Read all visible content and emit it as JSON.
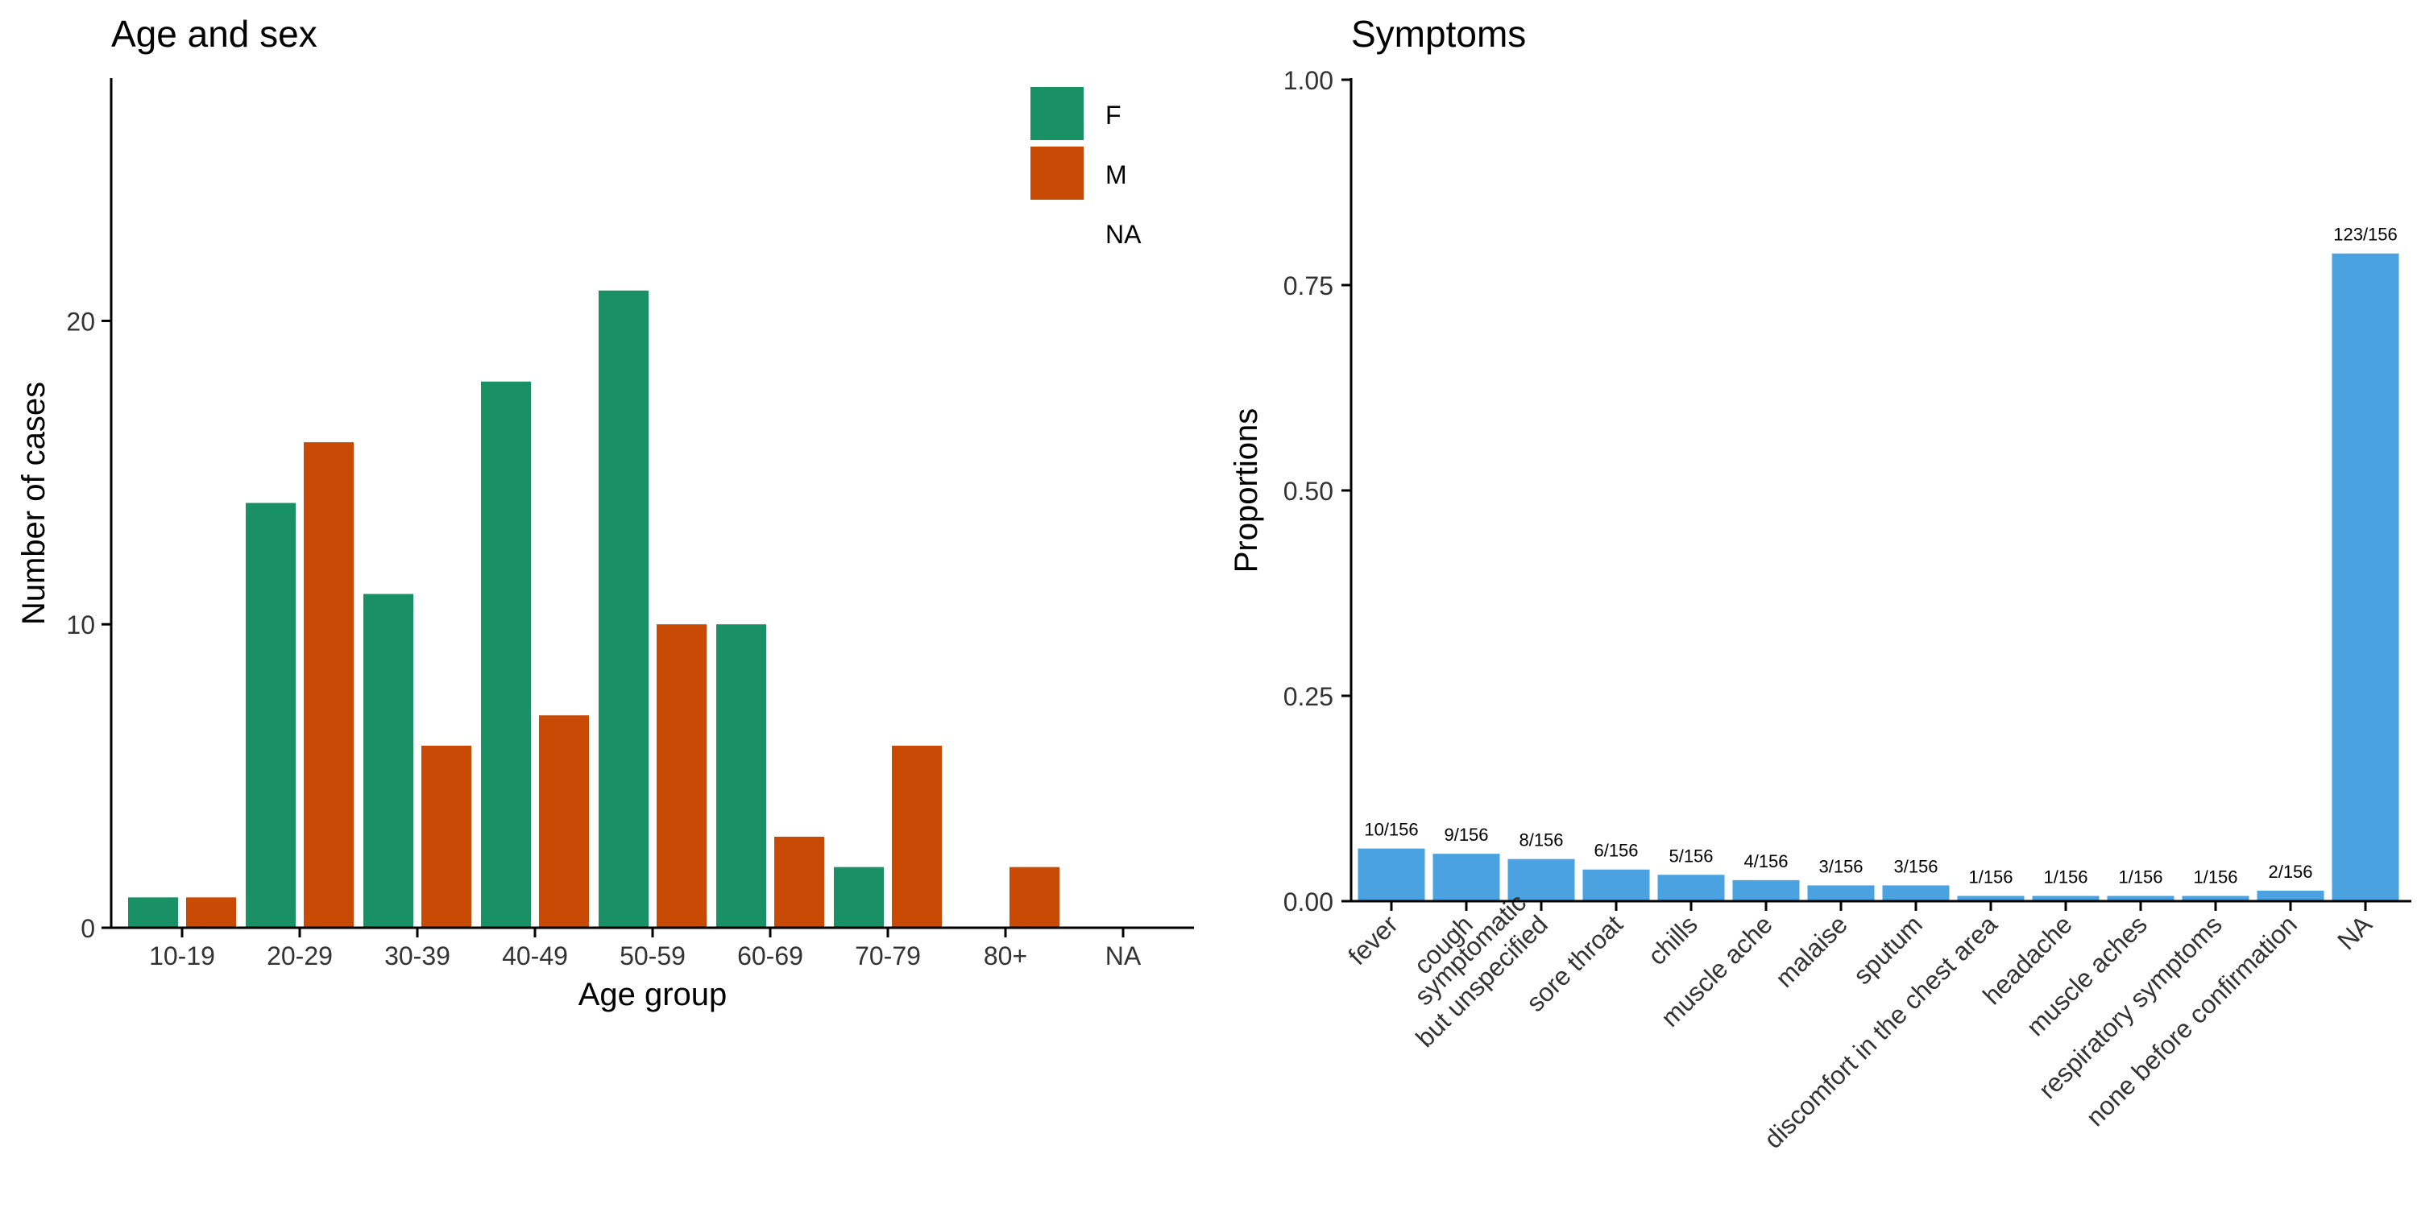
{
  "chart_data": [
    {
      "type": "bar",
      "title": "Age and sex",
      "xlabel": "Age group",
      "ylabel": "Number of cases",
      "categories": [
        "10-19",
        "20-29",
        "30-39",
        "40-49",
        "50-59",
        "60-69",
        "70-79",
        "80+",
        "NA"
      ],
      "series": [
        {
          "name": "F",
          "color": "#1a9066",
          "values": [
            1,
            14,
            11,
            18,
            21,
            10,
            2,
            null,
            null
          ]
        },
        {
          "name": "M",
          "color": "#c94a05",
          "values": [
            1,
            16,
            6,
            7,
            10,
            3,
            6,
            2,
            null
          ]
        }
      ],
      "legend_extra": "NA",
      "legend_position": "top-right",
      "ylim": [
        0,
        28
      ],
      "yticks": [
        "0",
        "10",
        "20"
      ],
      "yticks_values": [
        0,
        10,
        20
      ],
      "grid": false
    },
    {
      "type": "bar",
      "title": "Symptoms",
      "xlabel": "",
      "ylabel": "Proportions",
      "categories": [
        "fever",
        "cough",
        "symptomatic\nbut unspecified",
        "sore throat",
        "chills",
        "muscle ache",
        "malaise",
        "sputum",
        "discomfort in the chest area",
        "headache",
        "muscle aches",
        "respiratory symptoms",
        "none before confirmation",
        "NA"
      ],
      "values": [
        0.0641,
        0.0577,
        0.0513,
        0.0385,
        0.0321,
        0.0256,
        0.0192,
        0.0192,
        0.0064,
        0.0064,
        0.0064,
        0.0064,
        0.0128,
        0.7885
      ],
      "data_labels": [
        "10/156",
        "9/156",
        "8/156",
        "6/156",
        "5/156",
        "4/156",
        "3/156",
        "3/156",
        "1/156",
        "1/156",
        "1/156",
        "1/156",
        "2/156",
        "123/156"
      ],
      "color": "#4aa3e0",
      "ylim": [
        0,
        1
      ],
      "yticks": [
        "0.00",
        "0.25",
        "0.50",
        "0.75",
        "1.00"
      ],
      "yticks_values": [
        0,
        0.25,
        0.5,
        0.75,
        1.0
      ],
      "grid": false
    }
  ]
}
